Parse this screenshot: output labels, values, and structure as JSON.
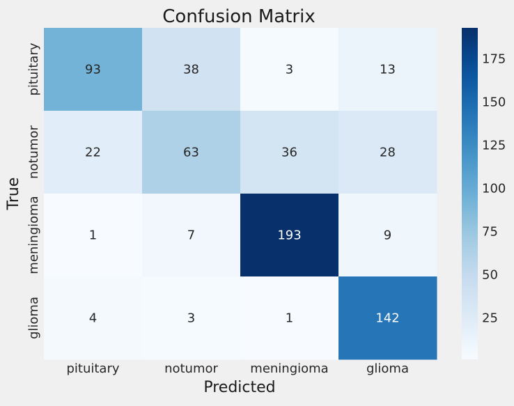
{
  "chart_data": {
    "type": "heatmap",
    "title": "Confusion Matrix",
    "xlabel": "Predicted",
    "ylabel": "True",
    "x_categories": [
      "pituitary",
      "notumor",
      "meningioma",
      "glioma"
    ],
    "y_categories": [
      "pituitary",
      "notumor",
      "meningioma",
      "glioma"
    ],
    "values": [
      [
        93,
        38,
        3,
        13
      ],
      [
        22,
        63,
        36,
        28
      ],
      [
        1,
        7,
        193,
        9
      ],
      [
        4,
        3,
        1,
        142
      ]
    ],
    "colorbar": {
      "min": 1,
      "max": 193,
      "ticks": [
        25,
        50,
        75,
        100,
        125,
        150,
        175
      ]
    },
    "colormap": "Blues"
  }
}
